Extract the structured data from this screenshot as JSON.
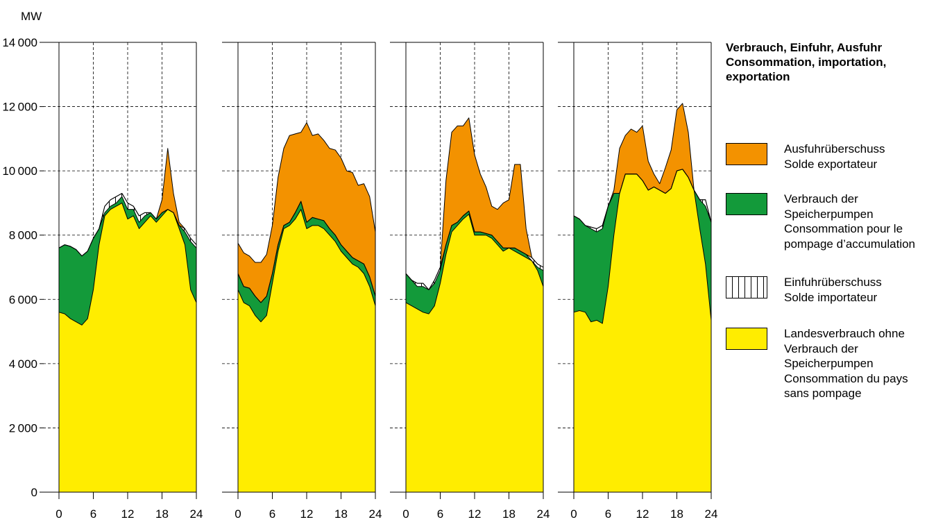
{
  "chart_data": {
    "type": "area",
    "unit_label": "MW",
    "x_ticks": [
      0,
      6,
      12,
      18,
      24
    ],
    "y_ticks": [
      0,
      2000,
      4000,
      6000,
      8000,
      10000,
      12000,
      14000
    ],
    "ylim": [
      0,
      14000
    ],
    "xlim": [
      0,
      24
    ],
    "grid": true,
    "hours": [
      0,
      1,
      2,
      3,
      4,
      5,
      6,
      7,
      8,
      9,
      10,
      11,
      12,
      13,
      14,
      15,
      16,
      17,
      18,
      19,
      20,
      21,
      22,
      23,
      24
    ],
    "legend": {
      "title": [
        "Verbrauch, Einfuhr, Ausfuhr",
        "Consommation, importation,",
        "exportation"
      ],
      "placement": "right",
      "items": [
        {
          "key": "export",
          "color": "#f39200",
          "pattern": "solid",
          "label": [
            "Ausfuhrüberschuss",
            "Solde exportateur"
          ]
        },
        {
          "key": "pump",
          "color": "#139a3a",
          "pattern": "solid",
          "label": [
            "Verbrauch der",
            "Speicherpumpen",
            "Consommation pour le",
            "pompage d’accumulation"
          ]
        },
        {
          "key": "import",
          "color": "#ffffff",
          "pattern": "vertical-hatch",
          "label": [
            "Einfuhrüberschuss",
            "Solde importateur"
          ]
        },
        {
          "key": "base",
          "color": "#ffed00",
          "pattern": "solid",
          "label": [
            "Landesverbrauch ohne",
            "Verbrauch der",
            "Speicherpumpen",
            "Consommation du pays",
            "sans pompage"
          ]
        }
      ]
    },
    "panels": [
      {
        "base": [
          5600,
          5550,
          5400,
          5300,
          5200,
          5400,
          6300,
          7700,
          8600,
          8800,
          8900,
          9000,
          8500,
          8600,
          8200,
          8400,
          8600,
          8400,
          8600,
          8800,
          8700,
          8200,
          7700,
          6300,
          5900
        ],
        "pump_top": [
          7600,
          7700,
          7650,
          7550,
          7350,
          7500,
          7900,
          8200,
          8700,
          8900,
          9000,
          9200,
          8800,
          8800,
          8400,
          8600,
          8700,
          8500,
          8700,
          8800,
          8700,
          8300,
          8100,
          7800,
          7600
        ],
        "consumption": [
          7600,
          7700,
          7650,
          7550,
          7350,
          7500,
          7900,
          8200,
          8900,
          9100,
          9200,
          9300,
          9000,
          8900,
          8600,
          8700,
          8700,
          8500,
          8700,
          8800,
          8700,
          8300,
          8200,
          7900,
          7700
        ],
        "total": [
          7600,
          7700,
          7650,
          7550,
          7350,
          7500,
          7900,
          8200,
          8900,
          9100,
          9200,
          9300,
          9000,
          8900,
          8600,
          8700,
          8700,
          8500,
          9100,
          10700,
          9300,
          8400,
          8200,
          7900,
          7700
        ]
      },
      {
        "base": [
          6300,
          5900,
          5800,
          5500,
          5300,
          5500,
          6500,
          7500,
          8200,
          8300,
          8500,
          8800,
          8200,
          8300,
          8300,
          8200,
          8000,
          7800,
          7500,
          7300,
          7100,
          7000,
          6800,
          6400,
          5800
        ],
        "pump_top": [
          6800,
          6400,
          6350,
          6100,
          5900,
          6100,
          6800,
          7700,
          8300,
          8400,
          8700,
          9050,
          8400,
          8550,
          8500,
          8450,
          8200,
          8000,
          7700,
          7500,
          7300,
          7200,
          7100,
          6700,
          6100
        ],
        "consumption": [
          6800,
          6400,
          6350,
          6100,
          5900,
          6100,
          6800,
          7700,
          8300,
          8400,
          8700,
          9050,
          8400,
          8550,
          8500,
          8450,
          8200,
          8000,
          7700,
          7500,
          7300,
          7200,
          7100,
          6700,
          6100
        ],
        "total": [
          7750,
          7450,
          7350,
          7150,
          7150,
          7400,
          8300,
          9800,
          10700,
          11100,
          11150,
          11200,
          11500,
          11100,
          11150,
          10950,
          10700,
          10650,
          10400,
          10000,
          9950,
          9550,
          9600,
          9200,
          8100
        ]
      },
      {
        "base": [
          5900,
          5800,
          5700,
          5600,
          5550,
          5800,
          6500,
          7400,
          8100,
          8300,
          8500,
          8650,
          8000,
          8000,
          8000,
          7900,
          7700,
          7500,
          7600,
          7500,
          7400,
          7300,
          7200,
          6900,
          6400
        ],
        "pump_top": [
          6800,
          6600,
          6400,
          6400,
          6300,
          6500,
          6900,
          7700,
          8300,
          8400,
          8600,
          8750,
          8100,
          8100,
          8050,
          8000,
          7800,
          7600,
          7600,
          7600,
          7500,
          7400,
          7200,
          7000,
          6900
        ],
        "consumption": [
          6800,
          6600,
          6500,
          6500,
          6300,
          6600,
          7000,
          7700,
          8300,
          8400,
          8600,
          8750,
          8100,
          8100,
          8050,
          8000,
          7800,
          7600,
          7600,
          7600,
          7500,
          7400,
          7300,
          7100,
          7000
        ],
        "total": [
          6800,
          6600,
          6500,
          6500,
          6300,
          6600,
          7000,
          9700,
          11200,
          11400,
          11400,
          11650,
          10500,
          9900,
          9500,
          8900,
          8800,
          9000,
          9100,
          10200,
          10200,
          8200,
          7300,
          7100,
          7000
        ]
      },
      {
        "base": [
          5600,
          5650,
          5600,
          5300,
          5350,
          5250,
          6400,
          8000,
          9300,
          9900,
          9900,
          9900,
          9700,
          9400,
          9500,
          9400,
          9300,
          9450,
          10000,
          10050,
          9800,
          9400,
          8200,
          7100,
          5350
        ],
        "pump_top": [
          8600,
          8500,
          8300,
          8200,
          8100,
          8200,
          8900,
          9300,
          9300,
          9900,
          9900,
          9900,
          9700,
          9400,
          9500,
          9400,
          9300,
          9450,
          10000,
          10050,
          9800,
          9400,
          9100,
          8900,
          8400
        ],
        "consumption": [
          8600,
          8500,
          8300,
          8250,
          8200,
          8300,
          8900,
          9300,
          9300,
          9900,
          9900,
          9900,
          9700,
          9400,
          9500,
          9400,
          9300,
          9450,
          10000,
          10050,
          9800,
          9400,
          9100,
          9100,
          8400
        ],
        "total": [
          8600,
          8500,
          8300,
          8250,
          8200,
          8300,
          8900,
          9400,
          10700,
          11100,
          11300,
          11200,
          11400,
          10300,
          9900,
          9600,
          10100,
          10650,
          11900,
          12100,
          11200,
          9400,
          9100,
          9100,
          8400
        ]
      }
    ]
  }
}
